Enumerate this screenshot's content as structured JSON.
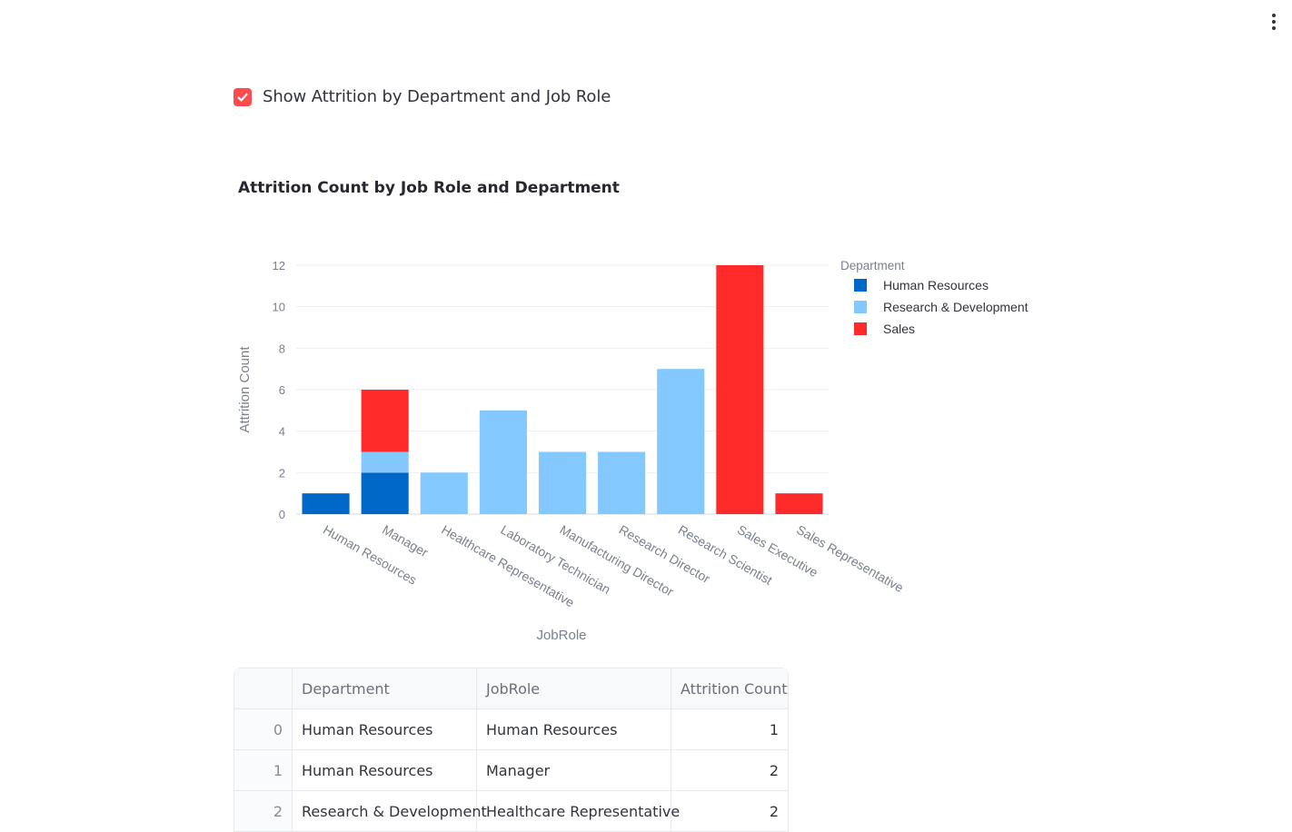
{
  "menu": {
    "icon": "kebab-menu-icon"
  },
  "checkbox": {
    "label": "Show Attrition by Department and Job Role",
    "checked": true,
    "color": "#ff4b4b",
    "icon": "checkmark-icon"
  },
  "chart_title": "Attrition Count by Job Role and Department",
  "chart_data": {
    "type": "bar",
    "stacked": true,
    "title": "Attrition Count by Job Role and Department",
    "xlabel": "JobRole",
    "ylabel": "Attrition Count",
    "ylim": [
      0,
      12
    ],
    "yticks": [
      "0",
      "2",
      "4",
      "6",
      "8",
      "10",
      "12"
    ],
    "grid": true,
    "legend_title": "Department",
    "legend_position": "top-right",
    "categories": [
      "Human Resources",
      "Manager",
      "Healthcare Representative",
      "Laboratory Technician",
      "Manufacturing Director",
      "Research Director",
      "Research Scientist",
      "Sales Executive",
      "Sales Representative"
    ],
    "series": [
      {
        "name": "Human Resources",
        "color": "#0068c9",
        "values": [
          1,
          2,
          0,
          0,
          0,
          0,
          0,
          0,
          0
        ]
      },
      {
        "name": "Research & Development",
        "color": "#83c9ff",
        "values": [
          0,
          1,
          2,
          5,
          3,
          3,
          7,
          0,
          0
        ]
      },
      {
        "name": "Sales",
        "color": "#ff2b2b",
        "values": [
          0,
          3,
          0,
          0,
          0,
          0,
          0,
          12,
          1
        ]
      }
    ]
  },
  "table": {
    "headers": [
      "",
      "Department",
      "JobRole",
      "Attrition Count"
    ],
    "rows": [
      {
        "index": "0",
        "department": "Human Resources",
        "job_role": "Human Resources",
        "count": "1"
      },
      {
        "index": "1",
        "department": "Human Resources",
        "job_role": "Manager",
        "count": "2"
      },
      {
        "index": "2",
        "department": "Research & Development",
        "job_role": "Healthcare Representative",
        "count": "2"
      }
    ]
  }
}
